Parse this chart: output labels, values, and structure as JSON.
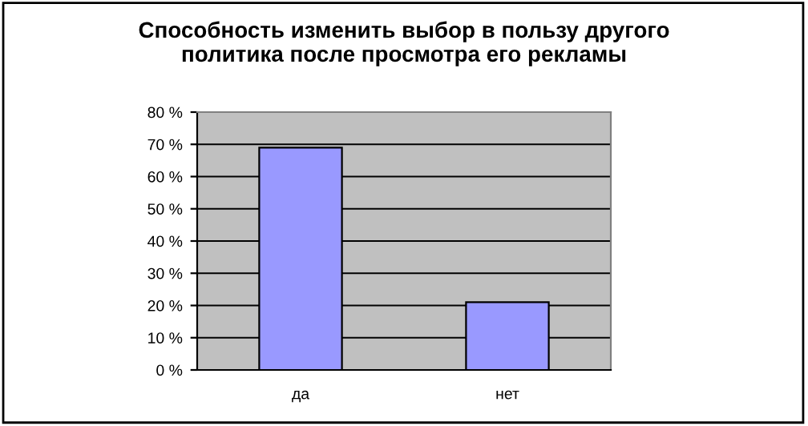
{
  "chart_data": {
    "type": "bar",
    "title": "Способность изменить выбор в пользу другого\nполитика после просмотра его рекламы",
    "categories": [
      "да",
      "нет"
    ],
    "values": [
      69,
      21
    ],
    "color": "#9999ff",
    "ylim": [
      0,
      80
    ],
    "yticks": [
      {
        "value": 0,
        "label": "0 %"
      },
      {
        "value": 10,
        "label": "10 %"
      },
      {
        "value": 20,
        "label": "20 %"
      },
      {
        "value": 30,
        "label": "30 %"
      },
      {
        "value": 40,
        "label": "40 %"
      },
      {
        "value": 50,
        "label": "50 %"
      },
      {
        "value": 60,
        "label": "60 %"
      },
      {
        "value": 70,
        "label": "70 %"
      },
      {
        "value": 80,
        "label": "80 %"
      }
    ],
    "grid": "y"
  }
}
